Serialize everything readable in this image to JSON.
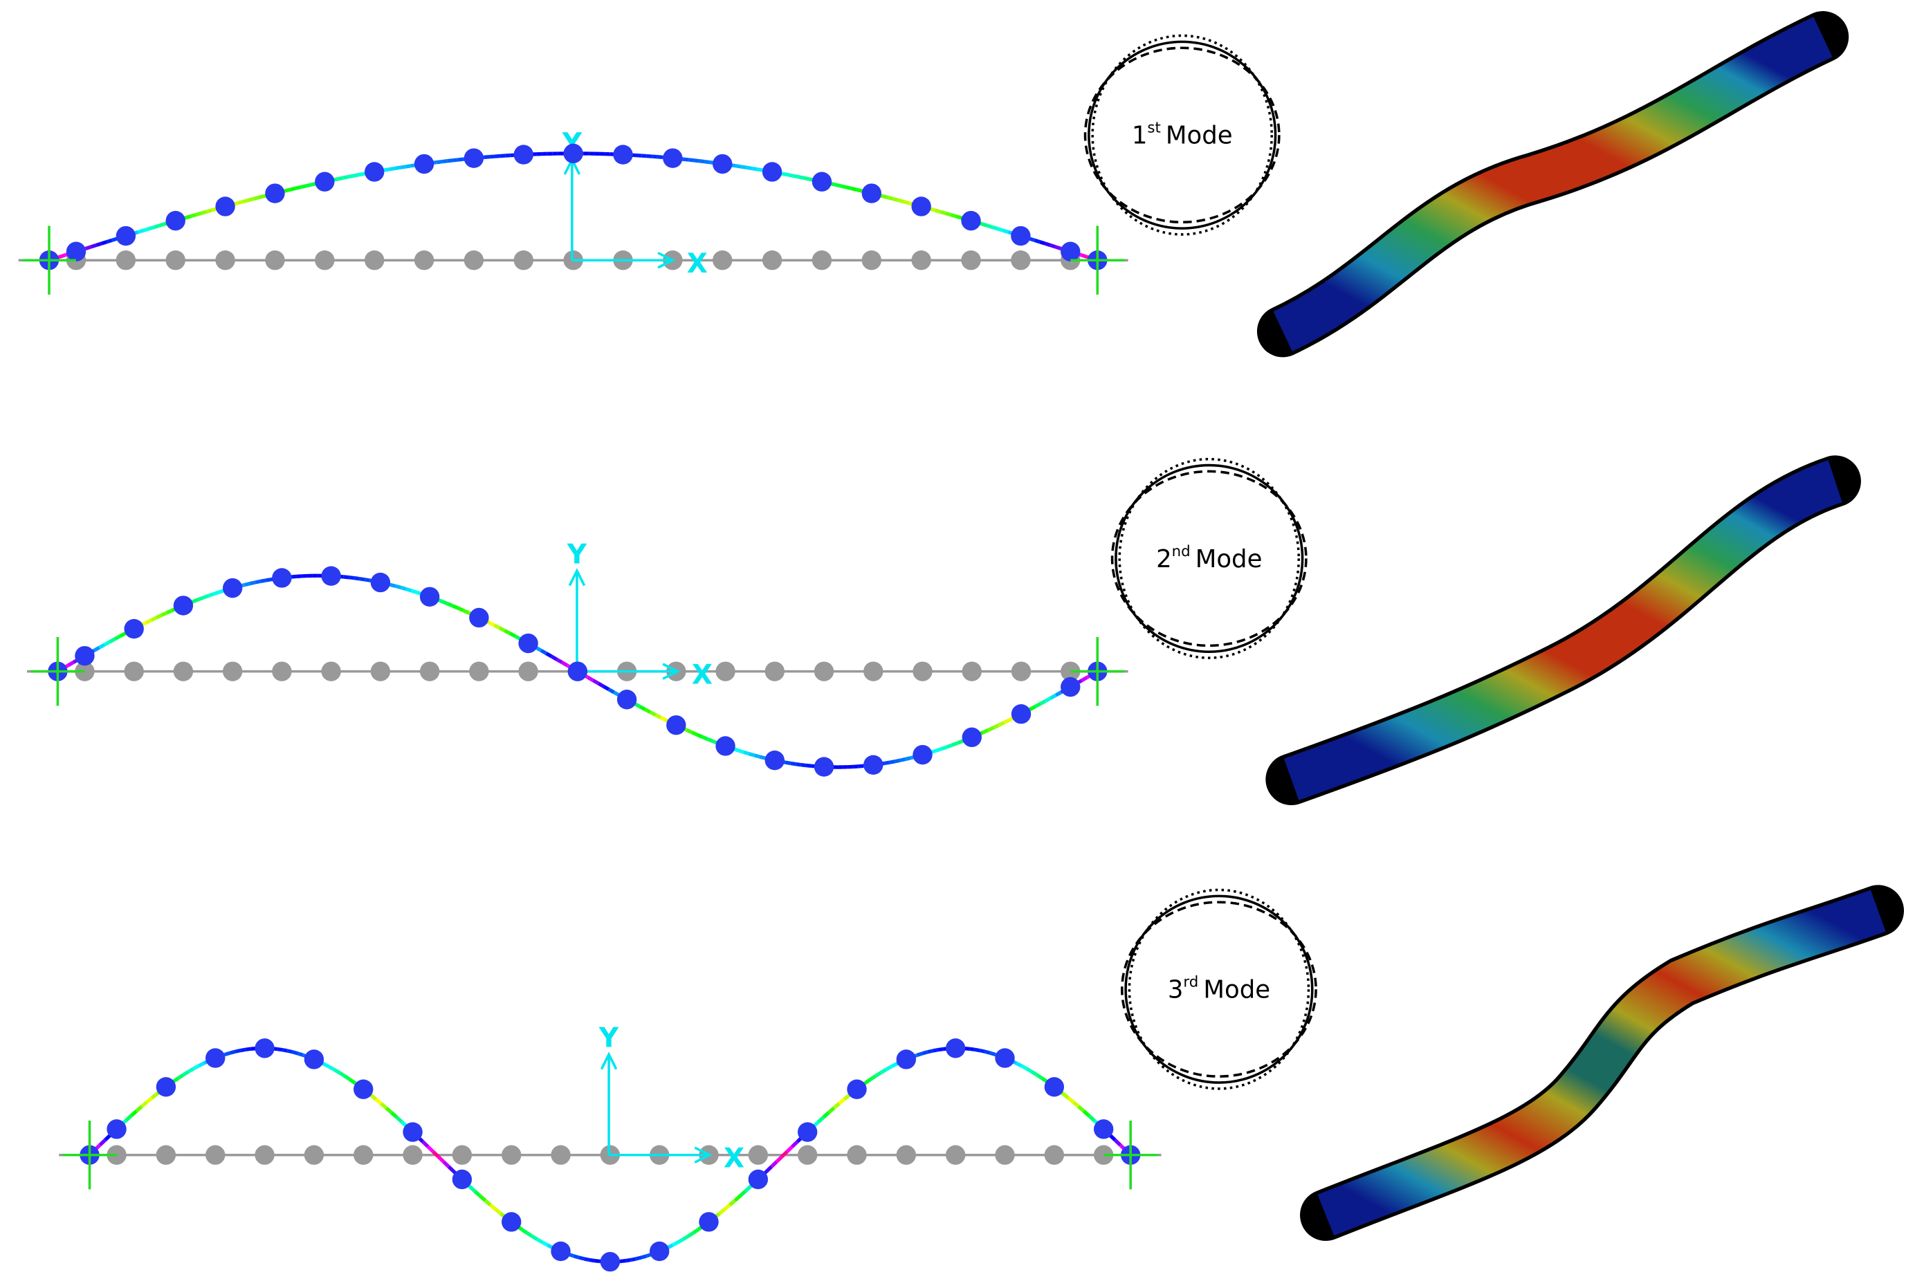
{
  "modes": [
    {
      "number": "1",
      "suffix": "st",
      "word": "Mode",
      "axis_y": "Y",
      "axis_x": "X"
    },
    {
      "number": "2",
      "suffix": "nd",
      "word": "Mode",
      "axis_y": "Y",
      "axis_x": "X"
    },
    {
      "number": "3",
      "suffix": "rd",
      "word": "Mode",
      "axis_y": "Y",
      "axis_x": "X"
    }
  ]
}
